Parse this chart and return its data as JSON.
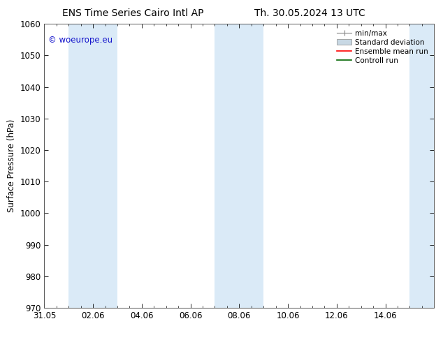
{
  "title_left": "ENS Time Series Cairo Intl AP",
  "title_right": "Th. 30.05.2024 13 UTC",
  "ylabel": "Surface Pressure (hPa)",
  "xlim_start": 0,
  "xlim_end": 16,
  "ylim": [
    970,
    1060
  ],
  "yticks": [
    970,
    980,
    990,
    1000,
    1010,
    1020,
    1030,
    1040,
    1050,
    1060
  ],
  "xtick_labels": [
    "31.05",
    "02.06",
    "04.06",
    "06.06",
    "08.06",
    "10.06",
    "12.06",
    "14.06"
  ],
  "xtick_positions": [
    0,
    2,
    4,
    6,
    8,
    10,
    12,
    14
  ],
  "shaded_bands": [
    {
      "x_start": 1.0,
      "x_end": 3.0,
      "color": "#daeaf7"
    },
    {
      "x_start": 7.0,
      "x_end": 9.0,
      "color": "#daeaf7"
    },
    {
      "x_start": 15.0,
      "x_end": 16.0,
      "color": "#daeaf7"
    }
  ],
  "watermark_text": "© woeurope.eu",
  "watermark_color": "#1515cc",
  "bg_color": "#ffffff",
  "plot_bg_color": "#ffffff",
  "font_size": 8.5,
  "title_fontsize": 10,
  "legend_fontsize": 7.5
}
